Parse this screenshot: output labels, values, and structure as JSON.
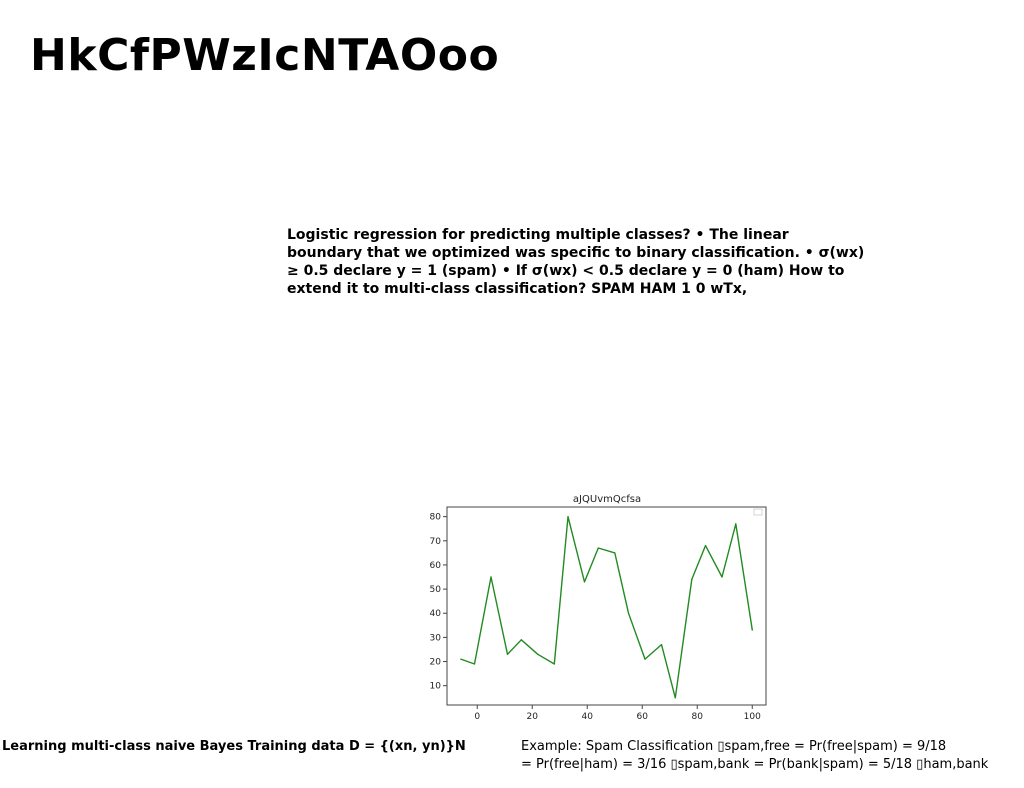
{
  "slide": {
    "title": "HkCfPWzIcNTAOoo",
    "body": "Logistic regression for predicting multiple classes? • The linear boundary that we optimized was specific to binary classification. • σ(w⁣x) ≥ 0.5 declare y = 1 (spam) • If σ(w⁣x) < 0.5 declare y = 0 (ham) How to extend it to multi-class classification? SPAM HAM 1 0 wTx,",
    "footer_left": "Learning multi-class naive Bayes Training data D = {(xn, yn)}N",
    "footer_right_line1": "Example: Spam Classification ▯spam,free = Pr(free|spam) = 9/18",
    "footer_right_line2": "= Pr(free|ham) = 3/16 ▯spam,bank = Pr(bank|spam) = 5/18 ▯ham,bank"
  },
  "chart_data": {
    "type": "line",
    "title": "aJQUvmQcfsa",
    "xlabel": "",
    "ylabel": "",
    "x": [
      -6,
      -1,
      5,
      11,
      16,
      22,
      28,
      33,
      39,
      44,
      50,
      55,
      61,
      67,
      72,
      78,
      83,
      89,
      94,
      100
    ],
    "values": [
      21,
      19,
      55,
      23,
      29,
      23,
      19,
      80,
      53,
      67,
      65,
      40,
      21,
      27,
      5,
      54,
      68,
      55,
      77,
      33
    ],
    "xlim": [
      -11,
      105
    ],
    "ylim": [
      2,
      84
    ],
    "xticks": [
      0,
      20,
      40,
      60,
      80,
      100
    ],
    "yticks": [
      10,
      20,
      30,
      40,
      50,
      60,
      70,
      80
    ],
    "line_color": "#228B22",
    "grid": false,
    "legend": "top-right (empty)"
  }
}
